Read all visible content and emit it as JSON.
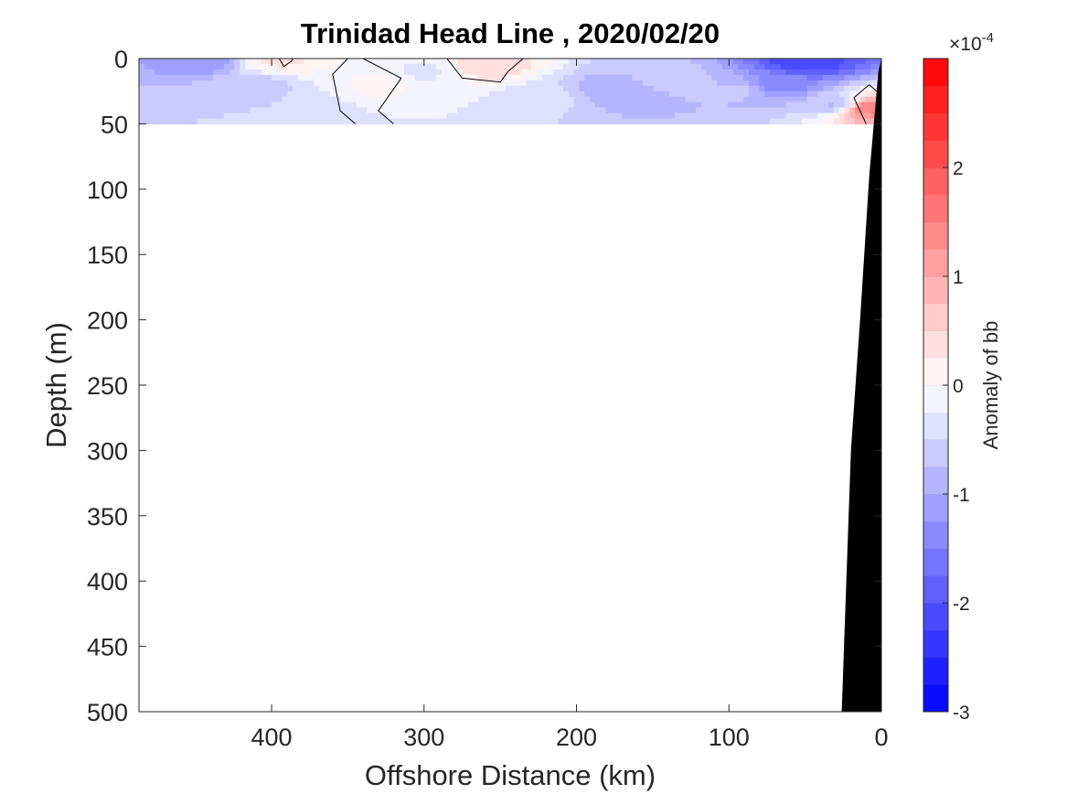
{
  "chart_data": {
    "type": "heatmap",
    "subtype": "filled-contour section",
    "title": "Trinidad Head Line , 2020/02/20",
    "xlabel": "Offshore Distance (km)",
    "ylabel": "Depth (m)",
    "xlim": [
      487,
      0
    ],
    "x_reversed": true,
    "ylim": [
      0,
      500
    ],
    "y_reversed": true,
    "xticks": [
      400,
      300,
      200,
      100,
      0
    ],
    "yticks": [
      0,
      50,
      100,
      150,
      200,
      250,
      300,
      350,
      400,
      450,
      500
    ],
    "data_depth_range_m": [
      0,
      50
    ],
    "colorbar": {
      "label": "Anomaly of bb",
      "scale_exponent_label": "×10",
      "scale_exponent_value": "-4",
      "limits": [
        -3,
        3
      ],
      "levels": 24,
      "ticks": [
        -3,
        -2,
        -1,
        0,
        1,
        2
      ],
      "colors": {
        "negative": "#0000ff",
        "zero": "#ffffff",
        "positive": "#ff0000"
      }
    },
    "bathymetry": {
      "color": "#000000",
      "points": [
        {
          "x": 0,
          "depth": 0
        },
        {
          "x": 2,
          "depth": 10
        },
        {
          "x": 8,
          "depth": 90
        },
        {
          "x": 14,
          "depth": 200
        },
        {
          "x": 20,
          "depth": 300
        },
        {
          "x": 26,
          "depth": 500
        }
      ]
    },
    "anomaly_patches": [
      {
        "x": 445,
        "depth": 2,
        "value": -1.2
      },
      {
        "x": 410,
        "depth": 20,
        "value": -0.6
      },
      {
        "x": 385,
        "depth": 40,
        "value": -0.5
      },
      {
        "x": 395,
        "depth": 2,
        "value": 0.3
      },
      {
        "x": 330,
        "depth": 20,
        "value": 0.05
      },
      {
        "x": 300,
        "depth": 10,
        "value": -0.3
      },
      {
        "x": 260,
        "depth": 5,
        "value": 0.5
      },
      {
        "x": 220,
        "depth": 30,
        "value": -0.4
      },
      {
        "x": 175,
        "depth": 25,
        "value": -1.0
      },
      {
        "x": 140,
        "depth": 15,
        "value": -0.6
      },
      {
        "x": 95,
        "depth": 25,
        "value": -0.7
      },
      {
        "x": 65,
        "depth": 20,
        "value": -1.4
      },
      {
        "x": 50,
        "depth": 3,
        "value": -2.2
      },
      {
        "x": 30,
        "depth": 35,
        "value": -0.8
      },
      {
        "x": 10,
        "depth": 38,
        "value": 1.5
      }
    ],
    "zero_contours": [
      [
        [
          395,
          0
        ],
        [
          392,
          6
        ],
        [
          387,
          2
        ],
        [
          386,
          0
        ]
      ],
      [
        [
          350,
          0
        ],
        [
          360,
          12
        ],
        [
          355,
          40
        ],
        [
          345,
          50
        ]
      ],
      [
        [
          340,
          0
        ],
        [
          315,
          15
        ],
        [
          330,
          40
        ],
        [
          320,
          50
        ]
      ],
      [
        [
          285,
          0
        ],
        [
          275,
          15
        ],
        [
          250,
          18
        ],
        [
          245,
          10
        ],
        [
          235,
          0
        ]
      ],
      [
        [
          10,
          50
        ],
        [
          18,
          30
        ],
        [
          8,
          20
        ],
        [
          3,
          25
        ]
      ]
    ]
  }
}
